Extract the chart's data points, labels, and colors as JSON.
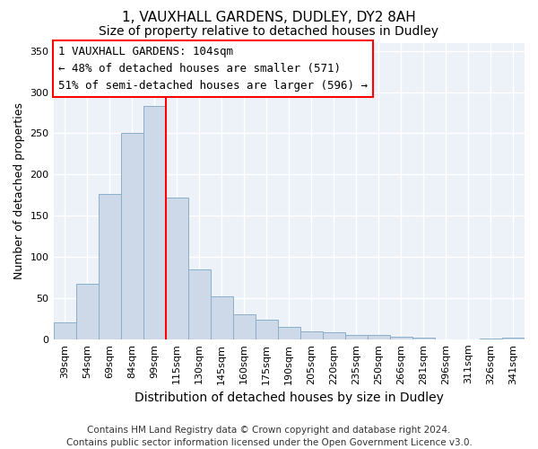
{
  "title": "1, VAUXHALL GARDENS, DUDLEY, DY2 8AH",
  "subtitle": "Size of property relative to detached houses in Dudley",
  "xlabel": "Distribution of detached houses by size in Dudley",
  "ylabel": "Number of detached properties",
  "footer_lines": [
    "Contains HM Land Registry data © Crown copyright and database right 2024.",
    "Contains public sector information licensed under the Open Government Licence v3.0."
  ],
  "categories": [
    "39sqm",
    "54sqm",
    "69sqm",
    "84sqm",
    "99sqm",
    "115sqm",
    "130sqm",
    "145sqm",
    "160sqm",
    "175sqm",
    "190sqm",
    "205sqm",
    "220sqm",
    "235sqm",
    "250sqm",
    "266sqm",
    "281sqm",
    "296sqm",
    "311sqm",
    "326sqm",
    "341sqm"
  ],
  "values": [
    20,
    67,
    176,
    250,
    283,
    172,
    85,
    52,
    30,
    24,
    15,
    10,
    8,
    5,
    5,
    3,
    2,
    0,
    0,
    1,
    2
  ],
  "bar_color": "#cdd9e8",
  "bar_edge_color": "#8aafc8",
  "vline_x": 4.5,
  "vline_color": "red",
  "annotation_title": "1 VAUXHALL GARDENS: 104sqm",
  "annotation_line1": "← 48% of detached houses are smaller (571)",
  "annotation_line2": "51% of semi-detached houses are larger (596) →",
  "annotation_box_edge": "red",
  "ylim": [
    0,
    360
  ],
  "yticks": [
    0,
    50,
    100,
    150,
    200,
    250,
    300,
    350
  ],
  "bg_color": "#edf2f9",
  "grid_color": "white",
  "title_fontsize": 11,
  "subtitle_fontsize": 10,
  "xlabel_fontsize": 10,
  "ylabel_fontsize": 9,
  "tick_fontsize": 8,
  "annotation_fontsize": 9,
  "footer_fontsize": 7.5
}
